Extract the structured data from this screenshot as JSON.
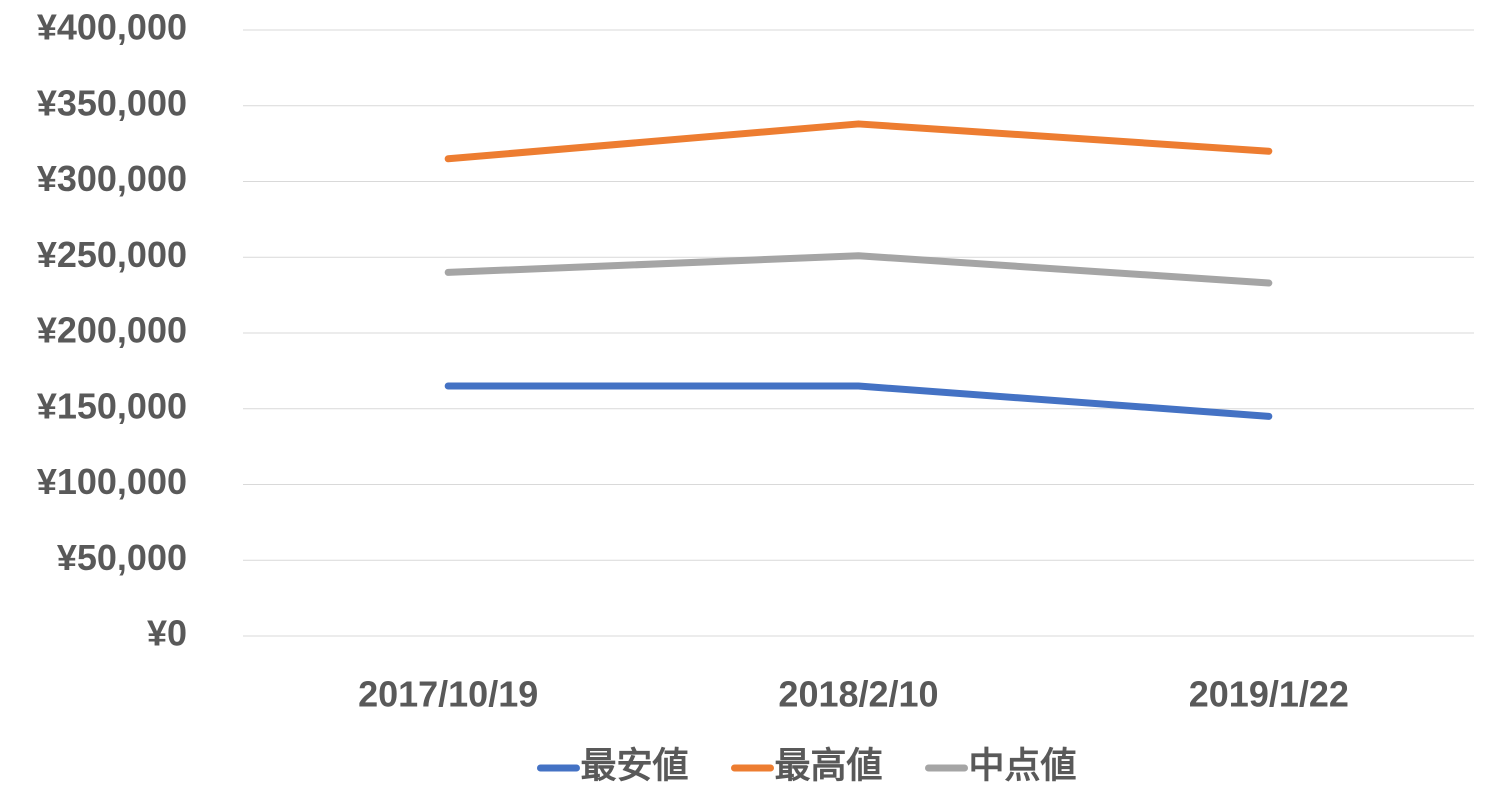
{
  "chart_data": {
    "type": "line",
    "categories": [
      "2017/10/19",
      "2018/2/10",
      "2019/1/22"
    ],
    "series": [
      {
        "name": "最安値",
        "color": "#4472c4",
        "values": [
          165000,
          165000,
          145000
        ]
      },
      {
        "name": "最高値",
        "color": "#ed7d31",
        "values": [
          315000,
          338000,
          320000
        ]
      },
      {
        "name": "中点値",
        "color": "#a5a5a5",
        "values": [
          240000,
          251000,
          233000
        ]
      }
    ],
    "ylim": [
      0,
      400000
    ],
    "yticks": [
      {
        "value": 0,
        "label": "¥0"
      },
      {
        "value": 50000,
        "label": "¥50,000"
      },
      {
        "value": 100000,
        "label": "¥100,000"
      },
      {
        "value": 150000,
        "label": "¥150,000"
      },
      {
        "value": 200000,
        "label": "¥200,000"
      },
      {
        "value": 250000,
        "label": "¥250,000"
      },
      {
        "value": 300000,
        "label": "¥300,000"
      },
      {
        "value": 350000,
        "label": "¥350,000"
      },
      {
        "value": 400000,
        "label": "¥400,000"
      }
    ],
    "grid": true,
    "legend": "bottom"
  }
}
